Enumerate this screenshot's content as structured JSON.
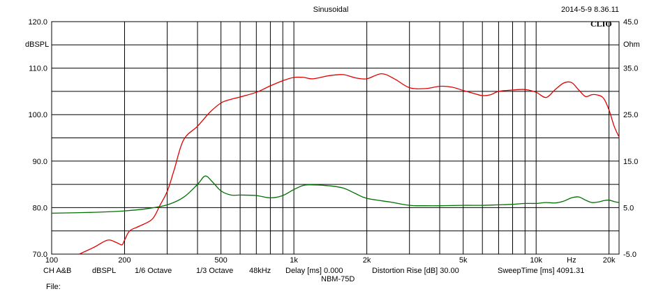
{
  "chart_data": {
    "type": "line",
    "title": "Sinusoidal",
    "timestamp": "2014-5-9 8.36.11",
    "brand": "CLIO",
    "x_scale": "log",
    "x_range": [
      100,
      22000
    ],
    "x_ticks": [
      {
        "v": 100,
        "label": "100"
      },
      {
        "v": 200,
        "label": "200"
      },
      {
        "v": 500,
        "label": "500"
      },
      {
        "v": 1000,
        "label": "1k"
      },
      {
        "v": 2000,
        "label": "2k"
      },
      {
        "v": 5000,
        "label": "5k"
      },
      {
        "v": 10000,
        "label": "10k"
      },
      {
        "v": 20000,
        "label": "20k"
      }
    ],
    "x_unit_label": "Hz",
    "x_unit_at": 14000,
    "x_gridlines": [
      200,
      300,
      400,
      500,
      600,
      700,
      800,
      900,
      1000,
      2000,
      3000,
      4000,
      5000,
      6000,
      7000,
      8000,
      9000,
      10000,
      20000
    ],
    "y_left": {
      "range": [
        70,
        120
      ],
      "unit": "dBSPL",
      "ticks": [
        {
          "v": 120,
          "label": "120.0"
        },
        {
          "v": 110,
          "label": "110.0"
        },
        {
          "v": 100,
          "label": "100.0"
        },
        {
          "v": 90,
          "label": "90.0"
        },
        {
          "v": 80,
          "label": "80.0"
        },
        {
          "v": 70,
          "label": "70.0"
        }
      ],
      "gridlines": [
        120,
        115,
        110,
        105,
        100,
        95,
        90,
        85,
        80,
        75,
        70
      ]
    },
    "y_right": {
      "range": [
        -5,
        45
      ],
      "unit": "Ohm",
      "ticks": [
        {
          "v": 45,
          "label": "45.0"
        },
        {
          "v": 35,
          "label": "35.0"
        },
        {
          "v": 25,
          "label": "25.0"
        },
        {
          "v": 15,
          "label": "15.0"
        },
        {
          "v": 5,
          "label": "5.0"
        },
        {
          "v": -5,
          "label": "-5.0"
        }
      ]
    },
    "grid": true,
    "series": [
      {
        "axis": "left",
        "color": "#e00000",
        "x": [
          130,
          150,
          170,
          185,
          195,
          200,
          210,
          230,
          260,
          280,
          300,
          320,
          350,
          400,
          450,
          500,
          550,
          600,
          700,
          800,
          900,
          1000,
          1100,
          1200,
          1400,
          1600,
          1800,
          2000,
          2300,
          2600,
          3000,
          3500,
          4000,
          4500,
          5000,
          5500,
          6000,
          6500,
          7000,
          8000,
          9000,
          10000,
          11000,
          12000,
          13000,
          14000,
          15000,
          16000,
          17000,
          18000,
          19000,
          20000,
          21000,
          22000
        ],
        "y": [
          70.0,
          71.5,
          73.0,
          72.5,
          72.0,
          73.0,
          75.0,
          76.0,
          77.5,
          80.5,
          83.5,
          88.0,
          94.5,
          97.5,
          100.5,
          102.5,
          103.3,
          103.8,
          104.8,
          106.2,
          107.3,
          108.0,
          108.0,
          107.7,
          108.4,
          108.6,
          107.9,
          107.7,
          108.8,
          107.7,
          105.8,
          105.6,
          106.1,
          105.9,
          105.2,
          104.6,
          104.1,
          104.3,
          105.0,
          105.3,
          105.4,
          104.8,
          103.7,
          105.4,
          106.8,
          106.9,
          105.3,
          103.9,
          104.3,
          104.2,
          103.5,
          101.0,
          97.5,
          95.2
        ]
      },
      {
        "axis": "right",
        "color": "#007000",
        "x": [
          100,
          150,
          200,
          250,
          300,
          350,
          400,
          430,
          460,
          500,
          550,
          600,
          700,
          800,
          900,
          1000,
          1100,
          1200,
          1400,
          1600,
          1800,
          2000,
          2500,
          3000,
          3500,
          4000,
          5000,
          6000,
          7000,
          8000,
          9000,
          10000,
          11000,
          12000,
          13000,
          14000,
          15000,
          16000,
          17000,
          18000,
          19000,
          20000,
          21000,
          22000
        ],
        "y": [
          3.8,
          4.0,
          4.3,
          4.8,
          5.6,
          7.2,
          10.0,
          11.8,
          10.6,
          8.6,
          7.7,
          7.7,
          7.6,
          7.1,
          7.6,
          8.9,
          9.8,
          9.9,
          9.7,
          9.2,
          8.0,
          7.0,
          6.2,
          5.5,
          5.4,
          5.4,
          5.5,
          5.5,
          5.6,
          5.7,
          5.9,
          5.9,
          6.1,
          6.0,
          6.4,
          7.1,
          7.3,
          6.6,
          6.1,
          6.2,
          6.5,
          6.6,
          6.3,
          6.1
        ]
      }
    ]
  },
  "footer": {
    "channel": "CH A&B",
    "unit": "dBSPL",
    "smoothing": "1/6 Octave",
    "resolution": "1/3 Octave",
    "sample_rate": "48kHz",
    "delay": "Delay [ms] 0.000",
    "distortion": "Distortion Rise [dB] 30.00",
    "sweep_time": "SweepTime [ms] 4091.31",
    "model": "NBM-75D",
    "file_label": "File:"
  }
}
